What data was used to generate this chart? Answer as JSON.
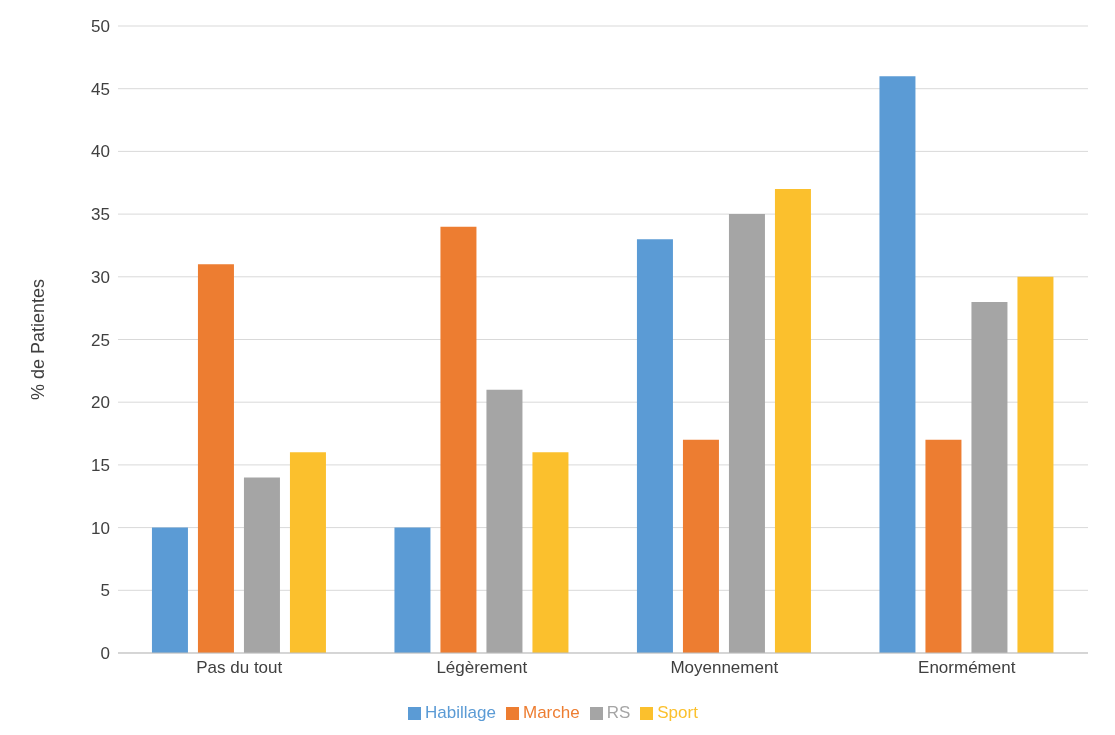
{
  "chart_data": {
    "type": "bar",
    "ylabel": "% de Patientes",
    "categories": [
      "Pas du tout",
      "Légèrement",
      "Moyennement",
      "Enormément"
    ],
    "series": [
      {
        "name": "Habillage",
        "color": "#5b9bd5",
        "values": [
          10,
          10,
          33,
          46
        ]
      },
      {
        "name": "Marche",
        "color": "#ed7d31",
        "values": [
          31,
          34,
          17,
          17
        ]
      },
      {
        "name": "RS",
        "color": "#a5a5a5",
        "values": [
          14,
          21,
          35,
          28
        ]
      },
      {
        "name": "Sport",
        "color": "#fbc02d",
        "values": [
          16,
          16,
          37,
          30
        ]
      }
    ],
    "ylim": [
      0,
      50
    ],
    "yticks": [
      0,
      5,
      10,
      15,
      20,
      25,
      30,
      35,
      40,
      45,
      50
    ],
    "grid": "y",
    "legend": "bottom"
  }
}
